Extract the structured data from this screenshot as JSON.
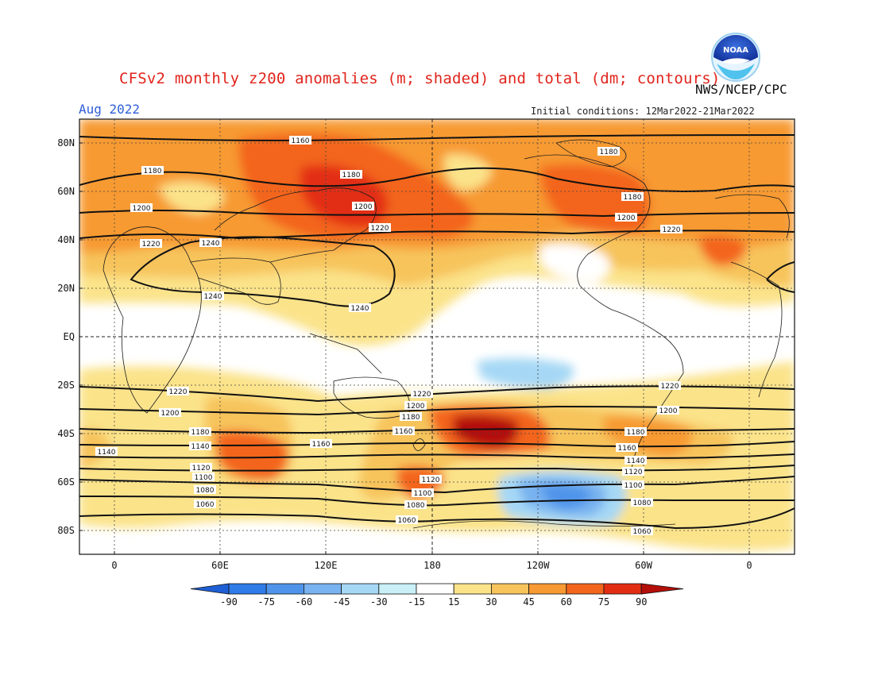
{
  "header": {
    "title": "CFSv2 monthly z200 anomalies (m; shaded) and total (dm; contours)",
    "agency": "NWS/NCEP/CPC",
    "valid_month": "Aug 2022",
    "initial_conditions": "Initial conditions: 12Mar2022-21Mar2022"
  },
  "logo": {
    "icon": "noaa-logo-icon",
    "text": "NOAA"
  },
  "map": {
    "lat_ticks": [
      "80N",
      "60N",
      "40N",
      "20N",
      "EQ",
      "20S",
      "40S",
      "60S",
      "80S"
    ],
    "lon_ticks": [
      "0",
      "60E",
      "120E",
      "180",
      "120W",
      "60W",
      "0"
    ],
    "contour_labels": [
      "1160",
      "1180",
      "1180",
      "1180",
      "1180",
      "1200",
      "1200",
      "1200",
      "1220",
      "1220",
      "1220",
      "1240",
      "1240",
      "1240",
      "1220",
      "1220",
      "1220",
      "1200",
      "1200",
      "1200",
      "1180",
      "1180",
      "1160",
      "1160",
      "1180",
      "1160",
      "1140",
      "1140",
      "1140",
      "1120",
      "1120",
      "1120",
      "1100",
      "1100",
      "1100",
      "1080",
      "1080",
      "1080",
      "1060",
      "1060",
      "1060"
    ]
  },
  "colorbar": {
    "labels": [
      "-90",
      "-75",
      "-60",
      "-45",
      "-30",
      "-15",
      "15",
      "30",
      "45",
      "60",
      "75",
      "90"
    ],
    "colors": [
      "#1f5fd6",
      "#2f7be8",
      "#4f94ea",
      "#78b2f0",
      "#a6d8f5",
      "#c8f0f6",
      "#ffffff",
      "#fbe38a",
      "#f7c45c",
      "#f79a33",
      "#f3651d",
      "#e32d12",
      "#b40f0a"
    ]
  },
  "colors": {
    "title": "#e0241b",
    "valid_month": "#2f5fd8",
    "ocean_blue": "#1f4fb0"
  }
}
